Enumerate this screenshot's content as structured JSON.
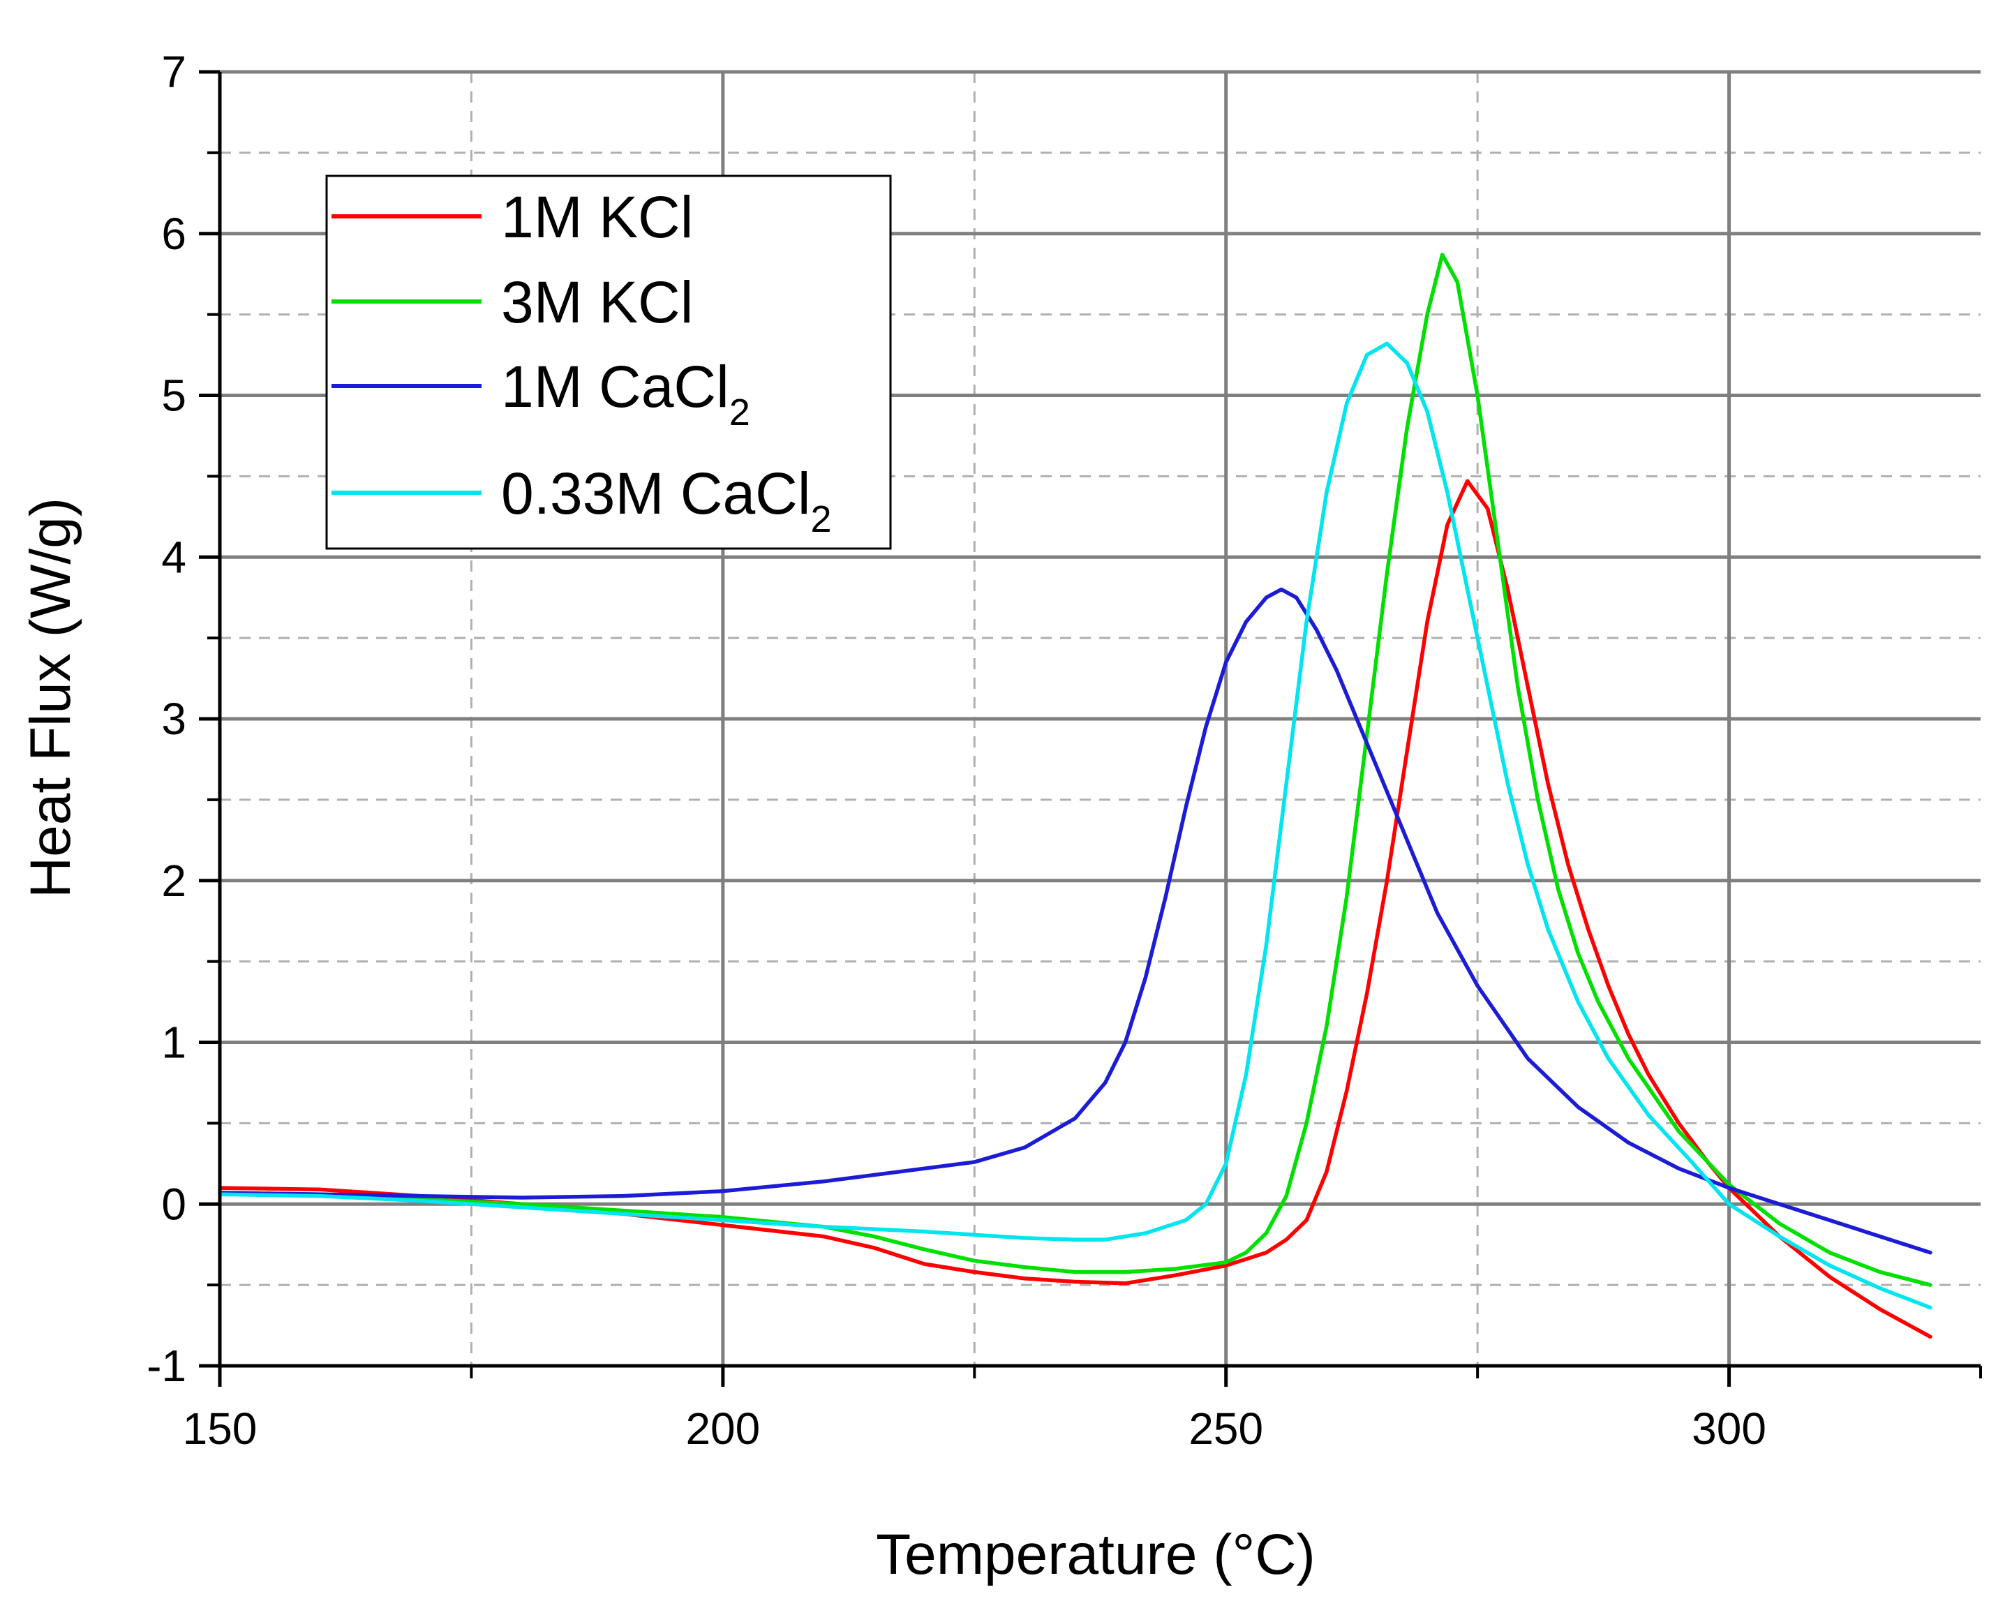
{
  "chart_data": {
    "type": "line",
    "title": "",
    "xlabel": "Temperature (°C)",
    "ylabel": "Heat Flux (W/g)",
    "xlim": [
      150,
      325
    ],
    "ylim": [
      -1,
      7
    ],
    "xticks": [
      150,
      200,
      250,
      300
    ],
    "xtick_labels": [
      "150",
      "200",
      "250",
      "300"
    ],
    "yticks": [
      -1,
      0,
      1,
      2,
      3,
      4,
      5,
      6,
      7
    ],
    "ytick_labels": [
      "-1",
      "0",
      "1",
      "2",
      "3",
      "4",
      "5",
      "6",
      "7"
    ],
    "grid": "major solid, minor dashed",
    "legend_position": "top-left",
    "series": [
      {
        "name": "1M KCl",
        "name_base": "1M KCl",
        "name_sub": "",
        "color": "#ff0000",
        "points": [
          [
            150,
            0.1
          ],
          [
            160,
            0.09
          ],
          [
            170,
            0.05
          ],
          [
            180,
            0.0
          ],
          [
            190,
            -0.06
          ],
          [
            200,
            -0.13
          ],
          [
            210,
            -0.2
          ],
          [
            215,
            -0.27
          ],
          [
            220,
            -0.37
          ],
          [
            225,
            -0.42
          ],
          [
            230,
            -0.46
          ],
          [
            235,
            -0.48
          ],
          [
            240,
            -0.49
          ],
          [
            245,
            -0.44
          ],
          [
            250,
            -0.38
          ],
          [
            254,
            -0.3
          ],
          [
            256,
            -0.22
          ],
          [
            258,
            -0.1
          ],
          [
            260,
            0.2
          ],
          [
            262,
            0.7
          ],
          [
            264,
            1.3
          ],
          [
            266,
            2.0
          ],
          [
            268,
            2.8
          ],
          [
            270,
            3.6
          ],
          [
            272,
            4.2
          ],
          [
            274,
            4.47
          ],
          [
            276,
            4.3
          ],
          [
            278,
            3.8
          ],
          [
            280,
            3.2
          ],
          [
            282,
            2.6
          ],
          [
            284,
            2.1
          ],
          [
            286,
            1.7
          ],
          [
            288,
            1.35
          ],
          [
            290,
            1.05
          ],
          [
            292,
            0.8
          ],
          [
            295,
            0.5
          ],
          [
            298,
            0.25
          ],
          [
            300,
            0.1
          ],
          [
            305,
            -0.2
          ],
          [
            310,
            -0.45
          ],
          [
            315,
            -0.65
          ],
          [
            320,
            -0.82
          ]
        ]
      },
      {
        "name": "3M KCl",
        "name_base": "3M KCl",
        "name_sub": "",
        "color": "#00e000",
        "points": [
          [
            150,
            0.07
          ],
          [
            160,
            0.06
          ],
          [
            170,
            0.03
          ],
          [
            180,
            0.0
          ],
          [
            190,
            -0.04
          ],
          [
            200,
            -0.08
          ],
          [
            210,
            -0.14
          ],
          [
            215,
            -0.2
          ],
          [
            220,
            -0.28
          ],
          [
            225,
            -0.35
          ],
          [
            230,
            -0.39
          ],
          [
            235,
            -0.42
          ],
          [
            240,
            -0.42
          ],
          [
            245,
            -0.4
          ],
          [
            250,
            -0.36
          ],
          [
            252,
            -0.3
          ],
          [
            254,
            -0.18
          ],
          [
            256,
            0.05
          ],
          [
            258,
            0.5
          ],
          [
            260,
            1.1
          ],
          [
            262,
            1.9
          ],
          [
            264,
            2.9
          ],
          [
            266,
            3.9
          ],
          [
            268,
            4.8
          ],
          [
            270,
            5.5
          ],
          [
            271.5,
            5.87
          ],
          [
            273,
            5.7
          ],
          [
            275,
            5.0
          ],
          [
            277,
            4.1
          ],
          [
            279,
            3.2
          ],
          [
            281,
            2.5
          ],
          [
            283,
            1.95
          ],
          [
            285,
            1.55
          ],
          [
            287,
            1.25
          ],
          [
            290,
            0.9
          ],
          [
            295,
            0.45
          ],
          [
            300,
            0.12
          ],
          [
            305,
            -0.12
          ],
          [
            310,
            -0.3
          ],
          [
            315,
            -0.42
          ],
          [
            320,
            -0.5
          ]
        ]
      },
      {
        "name": "1M CaCl2",
        "name_base": "1M CaCl",
        "name_sub": "2",
        "color": "#1c1cd6",
        "points": [
          [
            150,
            0.07
          ],
          [
            160,
            0.06
          ],
          [
            170,
            0.05
          ],
          [
            180,
            0.04
          ],
          [
            190,
            0.05
          ],
          [
            200,
            0.08
          ],
          [
            210,
            0.14
          ],
          [
            220,
            0.22
          ],
          [
            225,
            0.26
          ],
          [
            230,
            0.35
          ],
          [
            235,
            0.53
          ],
          [
            238,
            0.75
          ],
          [
            240,
            1.0
          ],
          [
            242,
            1.4
          ],
          [
            244,
            1.9
          ],
          [
            246,
            2.45
          ],
          [
            248,
            2.95
          ],
          [
            250,
            3.35
          ],
          [
            252,
            3.6
          ],
          [
            254,
            3.75
          ],
          [
            255.5,
            3.8
          ],
          [
            257,
            3.75
          ],
          [
            259,
            3.55
          ],
          [
            261,
            3.3
          ],
          [
            263,
            3.0
          ],
          [
            265,
            2.7
          ],
          [
            268,
            2.25
          ],
          [
            271,
            1.8
          ],
          [
            275,
            1.35
          ],
          [
            280,
            0.9
          ],
          [
            285,
            0.6
          ],
          [
            290,
            0.38
          ],
          [
            295,
            0.22
          ],
          [
            300,
            0.1
          ],
          [
            305,
            0.0
          ],
          [
            310,
            -0.1
          ],
          [
            315,
            -0.2
          ],
          [
            320,
            -0.3
          ]
        ]
      },
      {
        "name": "0.33M CaCl2",
        "name_base": "0.33M CaCl",
        "name_sub": "2",
        "color": "#00e5ee",
        "points": [
          [
            150,
            0.06
          ],
          [
            160,
            0.05
          ],
          [
            170,
            0.02
          ],
          [
            180,
            -0.02
          ],
          [
            190,
            -0.06
          ],
          [
            200,
            -0.1
          ],
          [
            210,
            -0.14
          ],
          [
            220,
            -0.17
          ],
          [
            225,
            -0.19
          ],
          [
            230,
            -0.21
          ],
          [
            235,
            -0.22
          ],
          [
            238,
            -0.22
          ],
          [
            242,
            -0.18
          ],
          [
            246,
            -0.1
          ],
          [
            248,
            0.0
          ],
          [
            250,
            0.25
          ],
          [
            252,
            0.8
          ],
          [
            254,
            1.6
          ],
          [
            256,
            2.6
          ],
          [
            258,
            3.6
          ],
          [
            260,
            4.4
          ],
          [
            262,
            4.95
          ],
          [
            264,
            5.25
          ],
          [
            266,
            5.32
          ],
          [
            268,
            5.2
          ],
          [
            270,
            4.9
          ],
          [
            272,
            4.4
          ],
          [
            274,
            3.8
          ],
          [
            276,
            3.2
          ],
          [
            278,
            2.6
          ],
          [
            280,
            2.1
          ],
          [
            282,
            1.7
          ],
          [
            285,
            1.25
          ],
          [
            288,
            0.9
          ],
          [
            292,
            0.55
          ],
          [
            296,
            0.28
          ],
          [
            300,
            0.0
          ],
          [
            305,
            -0.2
          ],
          [
            310,
            -0.38
          ],
          [
            315,
            -0.52
          ],
          [
            320,
            -0.64
          ]
        ]
      }
    ]
  }
}
